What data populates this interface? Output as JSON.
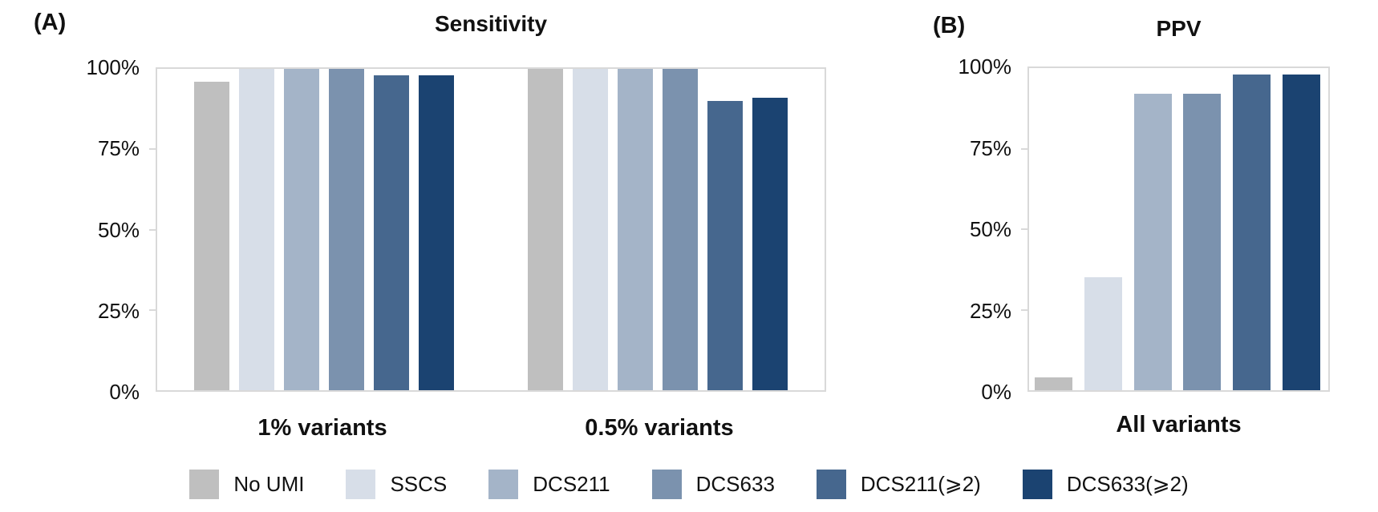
{
  "figure": {
    "background": "#ffffff",
    "frame_color": "#d9d9d9",
    "text_color": "#111111"
  },
  "chart_data": [
    {
      "type": "bar",
      "panel_tag": "(A)",
      "title": "Sensitivity",
      "categories": [
        "1% variants",
        "0.5% variants"
      ],
      "series": [
        {
          "name": "No UMI",
          "color": "#bfbfbf",
          "values": [
            96,
            100
          ]
        },
        {
          "name": "SSCS",
          "color": "#d7dee8",
          "values": [
            100,
            100
          ]
        },
        {
          "name": "DCS211",
          "color": "#a4b4c8",
          "values": [
            100,
            100
          ]
        },
        {
          "name": "DCS633",
          "color": "#7b92ae",
          "values": [
            100,
            100
          ]
        },
        {
          "name": "DCS211(⩾2)",
          "color": "#46678e",
          "values": [
            98,
            90
          ]
        },
        {
          "name": "DCS633(⩾2)",
          "color": "#1b4371",
          "values": [
            98,
            91
          ]
        }
      ],
      "xlabel": "",
      "ylabel": "",
      "ylim": [
        0,
        100
      ],
      "yticks": [
        "0%",
        "25%",
        "50%",
        "75%",
        "100%"
      ],
      "grid": false,
      "legend_position": "bottom"
    },
    {
      "type": "bar",
      "panel_tag": "(B)",
      "title": "PPV",
      "categories": [
        "All variants"
      ],
      "series": [
        {
          "name": "No UMI",
          "color": "#bfbfbf",
          "values": [
            4
          ]
        },
        {
          "name": "SSCS",
          "color": "#d7dee8",
          "values": [
            35
          ]
        },
        {
          "name": "DCS211",
          "color": "#a4b4c8",
          "values": [
            92
          ]
        },
        {
          "name": "DCS633",
          "color": "#7b92ae",
          "values": [
            92
          ]
        },
        {
          "name": "DCS211(⩾2)",
          "color": "#46678e",
          "values": [
            98
          ]
        },
        {
          "name": "DCS633(⩾2)",
          "color": "#1b4371",
          "values": [
            98
          ]
        }
      ],
      "xlabel": "",
      "ylabel": "",
      "ylim": [
        0,
        100
      ],
      "yticks": [
        "0%",
        "25%",
        "50%",
        "75%",
        "100%"
      ],
      "grid": false,
      "legend_position": "bottom"
    }
  ],
  "legend": {
    "items": [
      {
        "label": "No UMI",
        "color": "#bfbfbf"
      },
      {
        "label": "SSCS",
        "color": "#d7dee8"
      },
      {
        "label": "DCS211",
        "color": "#a4b4c8"
      },
      {
        "label": "DCS633",
        "color": "#7b92ae"
      },
      {
        "label": "DCS211(⩾2)",
        "color": "#46678e"
      },
      {
        "label": "DCS633(⩾2)",
        "color": "#1b4371"
      }
    ]
  }
}
